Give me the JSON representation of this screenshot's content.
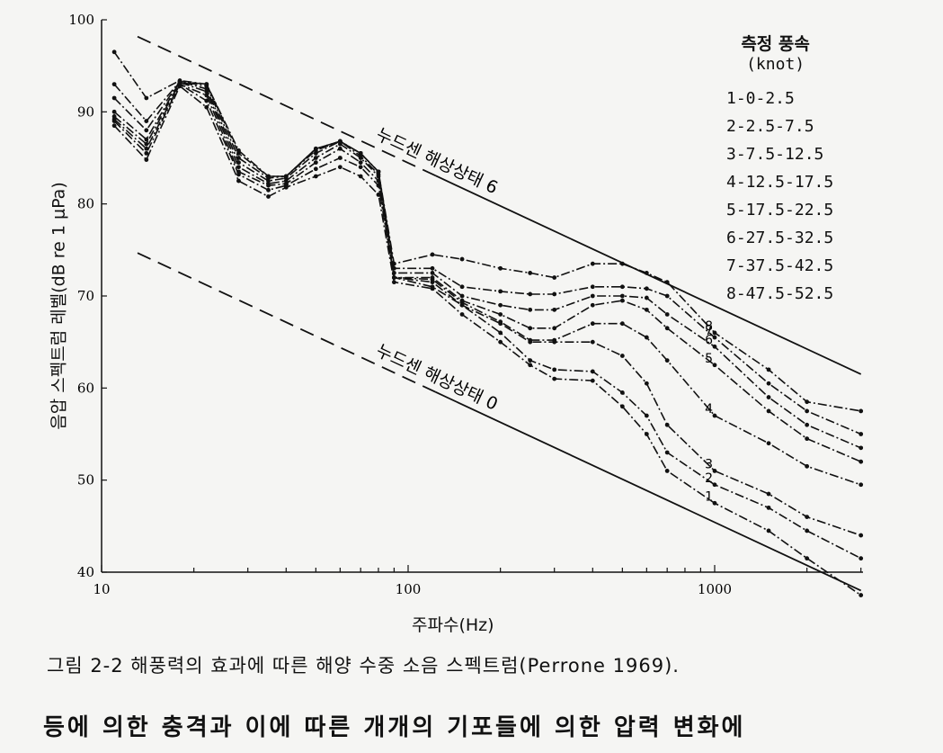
{
  "chart_data": {
    "type": "line",
    "xscale": "log",
    "xlim": [
      10,
      3000
    ],
    "ylim": [
      40,
      100
    ],
    "xticks": [
      "10",
      "100",
      "1000"
    ],
    "yticks": [
      "40",
      "50",
      "60",
      "70",
      "80",
      "90",
      "100"
    ],
    "xlabel": "주파수(Hz)",
    "ylabel": "음압 스펙트럼 레벨(dB re 1 μPa)",
    "legend": {
      "title": "측정 풍속",
      "unit": "(knot)",
      "items": [
        "1-0-2.5",
        "2-2.5-7.5",
        "3-7.5-12.5",
        "4-12.5-17.5",
        "5-17.5-22.5",
        "6-27.5-32.5",
        "7-37.5-42.5",
        "8-47.5-52.5"
      ]
    },
    "reference_lines": [
      {
        "label": "누드센 해상상태 6",
        "x": [
          10,
          3000
        ],
        "y": [
          100,
          61.5
        ]
      },
      {
        "label": "누드센 해상상태 0",
        "x": [
          10,
          3000
        ],
        "y": [
          76.5,
          38
        ]
      }
    ],
    "series": [
      {
        "name": "1",
        "x": [
          11,
          14,
          18,
          22,
          28,
          35,
          40,
          50,
          60,
          70,
          80,
          90,
          120,
          150,
          200,
          250,
          300,
          400,
          500,
          600,
          700,
          1000,
          1500,
          2000,
          3000
        ],
        "y": [
          88.5,
          84.8,
          92.8,
          90.5,
          82.5,
          80.8,
          81.8,
          83,
          84,
          83,
          81,
          71.5,
          70.8,
          68,
          65,
          62.5,
          61,
          60.8,
          58,
          55,
          51,
          47.5,
          44.5,
          41.5,
          37.5
        ]
      },
      {
        "name": "2",
        "x": [
          11,
          14,
          18,
          22,
          28,
          35,
          40,
          50,
          60,
          70,
          80,
          90,
          120,
          150,
          200,
          250,
          300,
          400,
          500,
          600,
          700,
          1000,
          1500,
          2000,
          3000
        ],
        "y": [
          89,
          85.5,
          93,
          91.2,
          83.2,
          81.5,
          82,
          83.8,
          85,
          84,
          82,
          72,
          71,
          69,
          66,
          63,
          62,
          61.8,
          59.5,
          57,
          53,
          49.5,
          47,
          44.5,
          41.5
        ]
      },
      {
        "name": "3",
        "x": [
          11,
          14,
          18,
          22,
          28,
          35,
          40,
          50,
          60,
          70,
          80,
          90,
          120,
          150,
          200,
          250,
          300,
          400,
          500,
          600,
          700,
          1000,
          1500,
          2000,
          3000
        ],
        "y": [
          89.2,
          86,
          93,
          91.8,
          83.5,
          82,
          82.2,
          84.5,
          86,
          84.5,
          82.5,
          72,
          71.5,
          69,
          67,
          65,
          65,
          65,
          63.5,
          60.5,
          56,
          51,
          48.5,
          46,
          44
        ]
      },
      {
        "name": "4",
        "x": [
          11,
          14,
          18,
          22,
          28,
          35,
          40,
          50,
          60,
          70,
          80,
          90,
          120,
          150,
          200,
          250,
          300,
          400,
          500,
          600,
          700,
          1000,
          1500,
          2000,
          3000
        ],
        "y": [
          89.5,
          86.5,
          93.2,
          92.2,
          84,
          82.2,
          82.5,
          85,
          86.5,
          85,
          83,
          72,
          71.8,
          69.3,
          67.2,
          65.2,
          65.2,
          67,
          67,
          65.5,
          63,
          57,
          54,
          51.5,
          49.5
        ]
      },
      {
        "name": "5",
        "x": [
          11,
          14,
          18,
          22,
          28,
          35,
          40,
          50,
          60,
          70,
          80,
          90,
          120,
          150,
          200,
          250,
          300,
          400,
          500,
          600,
          700,
          1000,
          1500,
          2000,
          3000
        ],
        "y": [
          90,
          87,
          93.3,
          92.5,
          84.5,
          82.5,
          82.8,
          85.5,
          86.8,
          85.2,
          83.2,
          72,
          72,
          69.5,
          68,
          66.5,
          66.5,
          69,
          69.5,
          68.5,
          66.5,
          62.5,
          57.5,
          54.5,
          52
        ]
      },
      {
        "name": "6",
        "x": [
          11,
          14,
          18,
          22,
          28,
          35,
          40,
          50,
          60,
          70,
          80,
          90,
          120,
          150,
          200,
          250,
          300,
          400,
          500,
          600,
          700,
          1000,
          1500,
          2000,
          3000
        ],
        "y": [
          91.5,
          88,
          93.3,
          92.8,
          85,
          82.8,
          83,
          85.8,
          86.8,
          85.5,
          83.5,
          72.5,
          72.5,
          70,
          69,
          68.5,
          68.5,
          70,
          70,
          69.8,
          68,
          64.5,
          59,
          56,
          53.5
        ]
      },
      {
        "name": "7",
        "x": [
          11,
          14,
          18,
          22,
          28,
          35,
          40,
          50,
          60,
          70,
          80,
          90,
          120,
          150,
          200,
          250,
          300,
          400,
          500,
          600,
          700,
          1000,
          1500,
          2000,
          3000
        ],
        "y": [
          93,
          89,
          93.3,
          93,
          85.5,
          83,
          83,
          86,
          86.8,
          85.5,
          83.5,
          73,
          73,
          71,
          70.5,
          70.2,
          70.2,
          71,
          71,
          70.8,
          70,
          65.5,
          60.5,
          57.5,
          55
        ]
      },
      {
        "name": "8",
        "x": [
          11,
          14,
          18,
          22,
          28,
          35,
          40,
          50,
          60,
          70,
          80,
          90,
          120,
          150,
          200,
          250,
          300,
          400,
          500,
          600,
          700,
          1000,
          1500,
          2000,
          3000
        ],
        "y": [
          96.5,
          91.5,
          93.4,
          93,
          85.8,
          83,
          83,
          86,
          86.8,
          85.5,
          83.5,
          73.5,
          74.5,
          74,
          73,
          72.5,
          72,
          73.5,
          73.5,
          72.5,
          71.5,
          66,
          62,
          58.5,
          57.5
        ]
      }
    ]
  },
  "caption": "그림 2-2  해풍력의 효과에 따른 해양 수중 소음 스펙트럼(Perrone 1969).",
  "body_text": "등에 의한 충격과 이에 따른 개개의 기포들에 의한 압력 변화에"
}
